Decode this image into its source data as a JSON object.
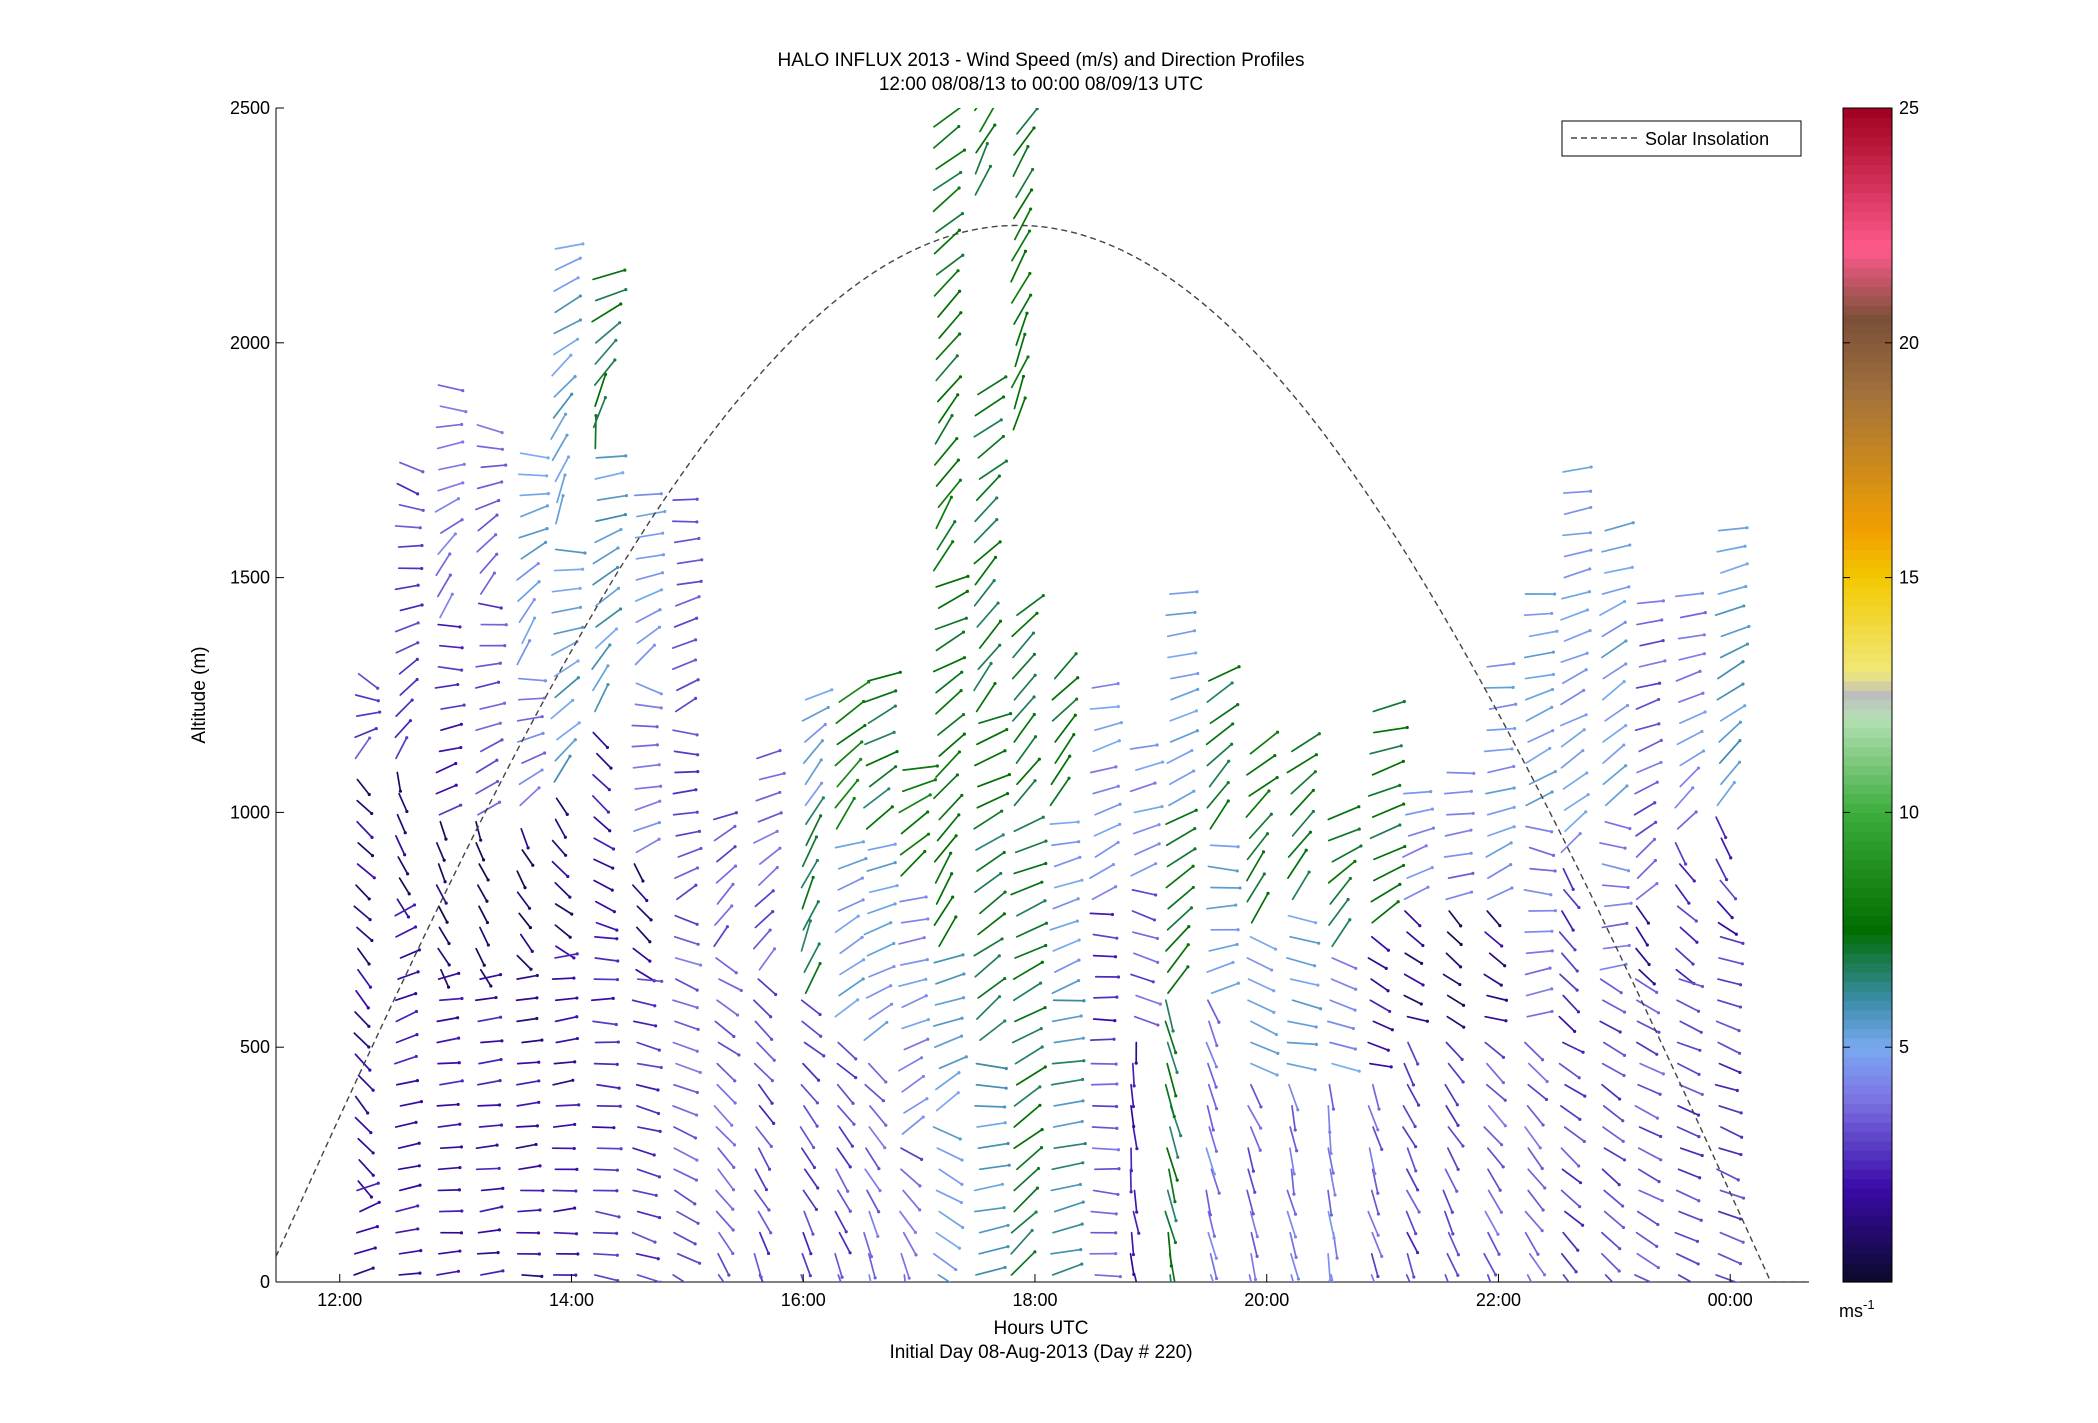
{
  "chart_data": {
    "type": "wind-barb-profile",
    "title": "HALO INFLUX 2013 - Wind Speed (m/s) and Direction Profiles",
    "subtitle": "12:00 08/08/13 to 00:00 08/09/13  UTC",
    "xlabel": "Hours UTC",
    "xlabel2": "Initial Day 08-Aug-2013 (Day # 220)",
    "ylabel": "Altitude (m)",
    "xlim_hours": [
      11.45,
      24.68
    ],
    "ylim": [
      0,
      2500
    ],
    "x_ticks": [
      {
        "hour": 12,
        "label": "12:00"
      },
      {
        "hour": 14,
        "label": "14:00"
      },
      {
        "hour": 16,
        "label": "16:00"
      },
      {
        "hour": 18,
        "label": "18:00"
      },
      {
        "hour": 20,
        "label": "20:00"
      },
      {
        "hour": 22,
        "label": "22:00"
      },
      {
        "hour": 24,
        "label": "00:00"
      }
    ],
    "y_ticks": [
      0,
      500,
      1000,
      1500,
      2000,
      2500
    ],
    "colorbar": {
      "label": "ms",
      "label_exponent": "-1",
      "range": [
        0,
        25
      ],
      "ticks": [
        5,
        10,
        15,
        20,
        25
      ],
      "stops": [
        {
          "v": 0,
          "c": "#0a0a2a"
        },
        {
          "v": 2,
          "c": "#3a0aa8"
        },
        {
          "v": 4,
          "c": "#7f78e6"
        },
        {
          "v": 5,
          "c": "#78aaf0"
        },
        {
          "v": 6,
          "c": "#3c8caa"
        },
        {
          "v": 7.5,
          "c": "#006e00"
        },
        {
          "v": 10,
          "c": "#3cac3c"
        },
        {
          "v": 12,
          "c": "#b4e0b4"
        },
        {
          "v": 12.5,
          "c": "#bebebe"
        },
        {
          "v": 13,
          "c": "#f0e878"
        },
        {
          "v": 15,
          "c": "#f2c800"
        },
        {
          "v": 16,
          "c": "#f2a000"
        },
        {
          "v": 19,
          "c": "#a0703c"
        },
        {
          "v": 20.5,
          "c": "#7a5038"
        },
        {
          "v": 22,
          "c": "#ff5a8c"
        },
        {
          "v": 25,
          "c": "#a0001e"
        }
      ]
    },
    "legend": {
      "entry": "Solar Insolation",
      "placement": "top-right",
      "style": "dashed"
    },
    "solar_insolation_curve": {
      "peak_hour": 17.85,
      "peak_altitude": 2250,
      "half_width_hours": 6.5
    },
    "wind_profiles": [
      {
        "hour": 12.15,
        "layers": [
          [
            1100,
            1300,
            3.0,
            35,
            125
          ],
          [
            200,
            1100,
            1.5,
            140,
            135
          ],
          [
            0,
            200,
            2.0,
            75,
            70
          ]
        ]
      },
      {
        "hour": 12.5,
        "layers": [
          [
            1100,
            1760,
            3.0,
            28,
            120
          ],
          [
            800,
            1100,
            1.2,
            150,
            165
          ],
          [
            0,
            800,
            2.0,
            80,
            65
          ]
        ]
      },
      {
        "hour": 12.85,
        "layers": [
          [
            1400,
            1920,
            3.8,
            20,
            105
          ],
          [
            980,
            1400,
            2.5,
            60,
            100
          ],
          [
            650,
            980,
            1.0,
            150,
            160
          ],
          [
            0,
            650,
            2.0,
            85,
            80
          ]
        ]
      },
      {
        "hour": 13.2,
        "layers": [
          [
            1450,
            1850,
            3.8,
            25,
            110
          ],
          [
            980,
            1450,
            3.2,
            55,
            95
          ],
          [
            650,
            980,
            1.0,
            145,
            160
          ],
          [
            0,
            650,
            2.0,
            85,
            80
          ]
        ]
      },
      {
        "hour": 13.55,
        "layers": [
          [
            1300,
            1780,
            5.0,
            20,
            100
          ],
          [
            1000,
            1300,
            4.0,
            50,
            90
          ],
          [
            680,
            1000,
            1.0,
            140,
            155
          ],
          [
            0,
            680,
            1.8,
            90,
            80
          ]
        ]
      },
      {
        "hour": 13.85,
        "layers": [
          [
            1600,
            2240,
            5.3,
            10,
            80
          ],
          [
            1050,
            1600,
            5.5,
            35,
            95
          ],
          [
            700,
            1050,
            1.5,
            120,
            150
          ],
          [
            0,
            700,
            2.0,
            88,
            80
          ]
        ]
      },
      {
        "hour": 14.2,
        "layers": [
          [
            1760,
            2140,
            7.0,
            5,
            75
          ],
          [
            1200,
            1760,
            5.5,
            30,
            85
          ],
          [
            750,
            1200,
            2.0,
            110,
            145
          ],
          [
            0,
            750,
            2.5,
            100,
            90
          ]
        ]
      },
      {
        "hour": 14.55,
        "layers": [
          [
            1300,
            1700,
            5.0,
            45,
            95
          ],
          [
            900,
            1300,
            4.0,
            60,
            110
          ],
          [
            650,
            900,
            1.5,
            120,
            150
          ],
          [
            0,
            650,
            2.8,
            110,
            100
          ]
        ]
      },
      {
        "hour": 14.9,
        "layers": [
          [
            1200,
            1700,
            3.5,
            55,
            95
          ],
          [
            800,
            1200,
            3.0,
            50,
            110
          ],
          [
            0,
            800,
            3.5,
            120,
            110
          ]
        ]
      },
      {
        "hour": 15.25,
        "layers": [
          [
            700,
            1000,
            3.5,
            30,
            70
          ],
          [
            0,
            700,
            3.5,
            150,
            120
          ]
        ]
      },
      {
        "hour": 15.6,
        "layers": [
          [
            650,
            1150,
            3.5,
            35,
            80
          ],
          [
            0,
            650,
            3.0,
            160,
            130
          ]
        ]
      },
      {
        "hour": 16.0,
        "layers": [
          [
            1000,
            1250,
            5.0,
            30,
            65
          ],
          [
            600,
            1000,
            7.0,
            20,
            30
          ],
          [
            0,
            600,
            3.0,
            165,
            125
          ]
        ]
      },
      {
        "hour": 16.3,
        "layers": [
          [
            950,
            1250,
            8.0,
            35,
            60
          ],
          [
            550,
            950,
            5.0,
            45,
            75
          ],
          [
            0,
            550,
            3.2,
            165,
            125
          ]
        ]
      },
      {
        "hour": 16.55,
        "layers": [
          [
            950,
            1300,
            7.0,
            50,
            70
          ],
          [
            500,
            950,
            5.0,
            55,
            85
          ],
          [
            0,
            500,
            3.8,
            165,
            130
          ]
        ]
      },
      {
        "hour": 16.85,
        "layers": [
          [
            850,
            1120,
            8.0,
            40,
            85
          ],
          [
            300,
            850,
            4.5,
            55,
            85
          ],
          [
            0,
            300,
            3.5,
            170,
            120
          ]
        ]
      },
      {
        "hour": 17.15,
        "layers": [
          [
            1500,
            2480,
            7.5,
            30,
            55
          ],
          [
            700,
            1500,
            7.5,
            25,
            70
          ],
          [
            350,
            700,
            5.5,
            55,
            80
          ],
          [
            0,
            350,
            5.0,
            120,
            120
          ]
        ]
      },
      {
        "hour": 17.5,
        "layers": [
          [
            2300,
            2500,
            7.5,
            20,
            40
          ],
          [
            1200,
            1900,
            7.2,
            35,
            55
          ],
          [
            500,
            1200,
            7.0,
            45,
            70
          ],
          [
            0,
            500,
            5.5,
            75,
            95
          ]
        ]
      },
      {
        "hour": 17.82,
        "layers": [
          [
            1800,
            2480,
            7.5,
            20,
            35
          ],
          [
            1000,
            1450,
            7.2,
            35,
            50
          ],
          [
            0,
            1000,
            7.0,
            45,
            70
          ]
        ]
      },
      {
        "hour": 18.15,
        "layers": [
          [
            1000,
            1300,
            7.2,
            35,
            45
          ],
          [
            600,
            1000,
            5.0,
            65,
            80
          ],
          [
            0,
            600,
            6.0,
            75,
            85
          ]
        ]
      },
      {
        "hour": 18.5,
        "layers": [
          [
            800,
            1300,
            4.5,
            55,
            85
          ],
          [
            500,
            800,
            2.5,
            90,
            95
          ],
          [
            0,
            500,
            3.5,
            95,
            90
          ]
        ]
      },
      {
        "hour": 18.85,
        "layers": [
          [
            850,
            1150,
            4.5,
            60,
            85
          ],
          [
            550,
            850,
            3.5,
            110,
            105
          ],
          [
            0,
            550,
            2.0,
            170,
            175
          ]
        ]
      },
      {
        "hour": 19.15,
        "layers": [
          [
            1000,
            1500,
            5.0,
            55,
            90
          ],
          [
            600,
            1000,
            7.5,
            40,
            60
          ],
          [
            0,
            600,
            7.0,
            170,
            165
          ]
        ]
      },
      {
        "hour": 19.5,
        "layers": [
          [
            950,
            1300,
            7.0,
            30,
            60
          ],
          [
            600,
            950,
            5.0,
            70,
            100
          ],
          [
            0,
            600,
            4.0,
            165,
            160
          ]
        ]
      },
      {
        "hour": 19.85,
        "layers": [
          [
            750,
            1150,
            7.5,
            25,
            60
          ],
          [
            450,
            750,
            5.0,
            110,
            120
          ],
          [
            0,
            450,
            3.5,
            170,
            155
          ]
        ]
      },
      {
        "hour": 20.2,
        "layers": [
          [
            800,
            1150,
            7.2,
            25,
            60
          ],
          [
            450,
            800,
            5.0,
            95,
            110
          ],
          [
            0,
            450,
            3.8,
            170,
            165
          ]
        ]
      },
      {
        "hour": 20.55,
        "layers": [
          [
            700,
            1020,
            7.2,
            30,
            75
          ],
          [
            450,
            700,
            4.5,
            100,
            110
          ],
          [
            0,
            450,
            4.0,
            170,
            170
          ]
        ]
      },
      {
        "hour": 20.9,
        "layers": [
          [
            750,
            1250,
            7.2,
            55,
            80
          ],
          [
            450,
            750,
            2.0,
            100,
            130
          ],
          [
            0,
            450,
            3.5,
            165,
            160
          ]
        ]
      },
      {
        "hour": 21.2,
        "layers": [
          [
            800,
            1050,
            4.5,
            60,
            85
          ],
          [
            550,
            800,
            1.5,
            105,
            135
          ],
          [
            0,
            550,
            3.0,
            160,
            150
          ]
        ]
      },
      {
        "hour": 21.55,
        "layers": [
          [
            800,
            1100,
            4.0,
            70,
            90
          ],
          [
            550,
            800,
            1.0,
            115,
            140
          ],
          [
            0,
            550,
            3.2,
            160,
            140
          ]
        ]
      },
      {
        "hour": 21.9,
        "layers": [
          [
            800,
            1350,
            4.8,
            60,
            90
          ],
          [
            550,
            800,
            1.5,
            100,
            140
          ],
          [
            0,
            550,
            3.5,
            155,
            130
          ]
        ]
      },
      {
        "hour": 22.25,
        "layers": [
          [
            1000,
            1500,
            5.0,
            55,
            90
          ],
          [
            550,
            1000,
            4.0,
            70,
            110
          ],
          [
            0,
            550,
            3.5,
            150,
            130
          ]
        ]
      },
      {
        "hour": 22.55,
        "layers": [
          [
            900,
            1750,
            4.8,
            50,
            85
          ],
          [
            550,
            900,
            2.5,
            130,
            150
          ],
          [
            0,
            550,
            3.0,
            140,
            120
          ]
        ]
      },
      {
        "hour": 22.9,
        "layers": [
          [
            1000,
            1620,
            5.0,
            40,
            80
          ],
          [
            650,
            1000,
            4.0,
            70,
            110
          ],
          [
            0,
            650,
            3.0,
            130,
            120
          ]
        ]
      },
      {
        "hour": 23.2,
        "layers": [
          [
            800,
            1460,
            3.5,
            45,
            85
          ],
          [
            650,
            800,
            2.0,
            135,
            150
          ],
          [
            0,
            650,
            3.2,
            120,
            120
          ]
        ]
      },
      {
        "hour": 23.55,
        "layers": [
          [
            950,
            1460,
            4.2,
            40,
            85
          ],
          [
            650,
            950,
            2.5,
            120,
            150
          ],
          [
            0,
            650,
            3.0,
            115,
            110
          ]
        ]
      },
      {
        "hour": 23.9,
        "layers": [
          [
            1000,
            1610,
            5.5,
            40,
            85
          ],
          [
            750,
            1000,
            2.5,
            125,
            160
          ],
          [
            0,
            750,
            3.0,
            110,
            110
          ]
        ]
      }
    ]
  }
}
